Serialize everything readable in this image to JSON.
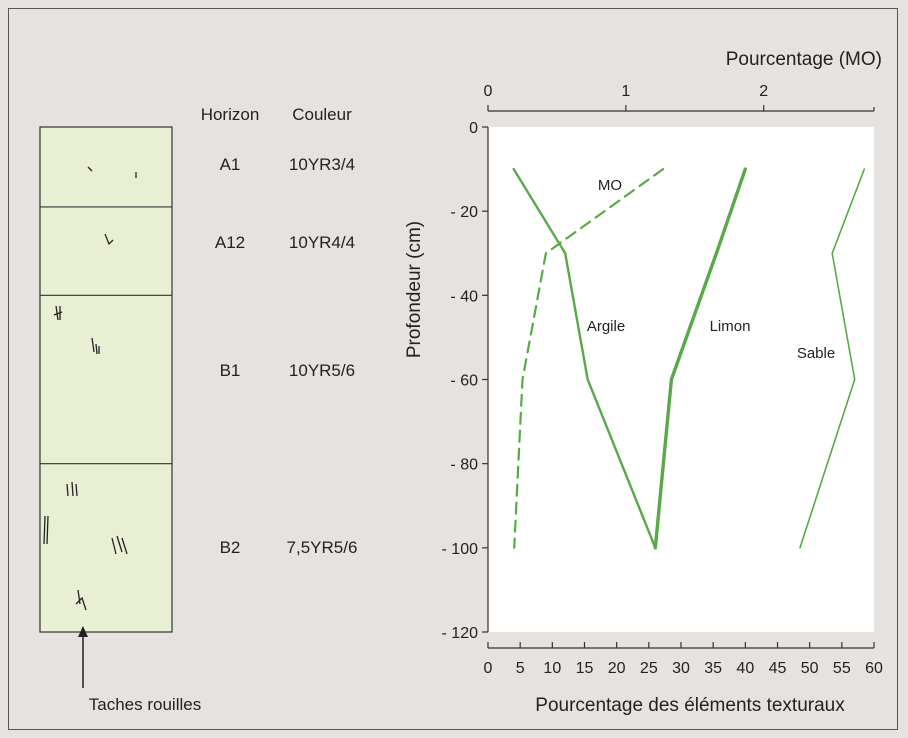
{
  "profile": {
    "headers": {
      "horizon": "Horizon",
      "color": "Couleur"
    },
    "horizons": [
      {
        "name": "A1",
        "color": "10YR3/4",
        "top_cm": 0,
        "bottom_cm": 19
      },
      {
        "name": "A12",
        "color": "10YR4/4",
        "top_cm": 19,
        "bottom_cm": 40
      },
      {
        "name": "B1",
        "color": "10YR5/6",
        "top_cm": 40,
        "bottom_cm": 80
      },
      {
        "name": "B2",
        "color": "7,5YR5/6",
        "top_cm": 80,
        "bottom_cm": 120
      }
    ],
    "rust_spots_label": "Taches rouilles"
  },
  "chart_data": {
    "type": "line",
    "title": "",
    "ylabel": "Profondeur (cm)",
    "ylim": [
      0,
      -120
    ],
    "yticks": [
      0,
      -20,
      -40,
      -60,
      -80,
      -100,
      -120
    ],
    "ytick_labels": [
      "0",
      "- 20",
      "- 40",
      "- 60",
      "- 80",
      "- 100",
      "- 120"
    ],
    "x_bottom": {
      "label": "Pourcentage des éléments texturaux",
      "lim": [
        0,
        60
      ],
      "ticks": [
        0,
        5,
        10,
        15,
        20,
        25,
        30,
        35,
        40,
        45,
        50,
        55,
        60
      ]
    },
    "x_top": {
      "label": "Pourcentage (MO)",
      "lim": [
        0,
        2.8
      ],
      "ticks": [
        0,
        1,
        2
      ]
    },
    "series": [
      {
        "name": "Argile",
        "axis": "bottom",
        "style": "solid",
        "width": 2.4,
        "points": [
          [
            4,
            -10
          ],
          [
            12,
            -30
          ],
          [
            15.5,
            -60
          ],
          [
            26,
            -100
          ]
        ]
      },
      {
        "name": "Limon",
        "axis": "bottom",
        "style": "solid",
        "width": 3.4,
        "points": [
          [
            40,
            -10
          ],
          [
            35.5,
            -30
          ],
          [
            28.5,
            -60
          ],
          [
            26,
            -100
          ]
        ]
      },
      {
        "name": "Sable",
        "axis": "bottom",
        "style": "solid",
        "width": 1.6,
        "points": [
          [
            58.5,
            -10
          ],
          [
            53.5,
            -30
          ],
          [
            57,
            -60
          ],
          [
            48.5,
            -100
          ]
        ]
      },
      {
        "name": "MO",
        "axis": "top",
        "style": "dashed",
        "width": 2.2,
        "points": [
          [
            1.27,
            -10
          ],
          [
            0.42,
            -30
          ],
          [
            0.25,
            -60
          ],
          [
            0.19,
            -100
          ]
        ]
      }
    ],
    "colors": {
      "series": "#5aa84a",
      "plot_bg": "#ffffff",
      "profile_bg": "#e9efd3",
      "axis": "#333333"
    }
  }
}
